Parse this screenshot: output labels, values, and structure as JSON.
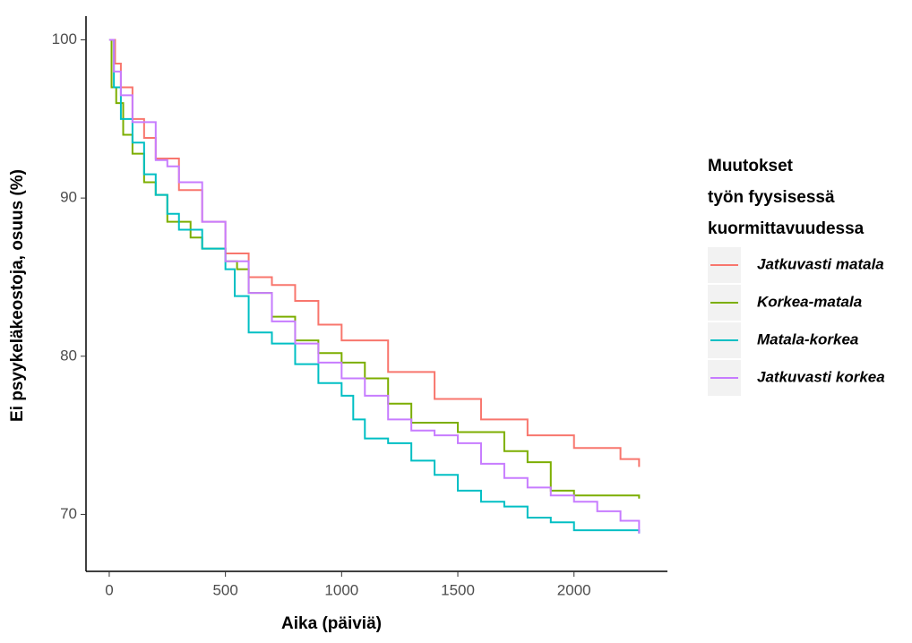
{
  "chart_data": {
    "type": "step",
    "x_label": "Aika (päiviä)",
    "y_label": "Ei psyykeläkeostoja,  osuus (%)",
    "legend_title": [
      "Muutokset",
      "työn fyysisessä",
      "kuormittavuudessa"
    ],
    "legend_position": "right",
    "xlim": [
      -100,
      2402
    ],
    "ylim": [
      66.4,
      101.5
    ],
    "xticks": [
      0,
      500,
      1000,
      1500,
      2000
    ],
    "yticks": [
      70,
      80,
      90,
      100
    ],
    "series": [
      {
        "name": "Jatkuvasti matala",
        "color": "#F8766D",
        "x": [
          0,
          25,
          50,
          100,
          150,
          200,
          300,
          400,
          500,
          600,
          700,
          800,
          900,
          1000,
          1200,
          1400,
          1600,
          1800,
          2000,
          2200,
          2280
        ],
        "values": [
          100,
          98.5,
          97,
          95,
          93.8,
          92.5,
          90.5,
          88.5,
          86.5,
          85,
          84.5,
          83.5,
          82,
          81,
          79,
          77.3,
          76,
          75,
          74.2,
          73.5,
          73
        ]
      },
      {
        "name": "Korkea-matala",
        "color": "#7CAE00",
        "x": [
          0,
          10,
          30,
          60,
          100,
          150,
          200,
          250,
          350,
          400,
          500,
          550,
          600,
          700,
          800,
          900,
          1000,
          1100,
          1200,
          1300,
          1500,
          1700,
          1800,
          1900,
          2000,
          2280
        ],
        "values": [
          100,
          97,
          96,
          94,
          92.8,
          91,
          90.2,
          88.5,
          87.5,
          86.8,
          86,
          85.5,
          84,
          82.5,
          81,
          80.2,
          79.6,
          78.6,
          77,
          75.8,
          75.2,
          74,
          73.3,
          71.5,
          71.2,
          71
        ]
      },
      {
        "name": "Matala-korkea",
        "color": "#00BFC4",
        "x": [
          0,
          20,
          50,
          100,
          150,
          200,
          250,
          300,
          400,
          500,
          540,
          600,
          700,
          800,
          900,
          1000,
          1050,
          1100,
          1200,
          1300,
          1400,
          1500,
          1600,
          1700,
          1800,
          1900,
          2000,
          2280
        ],
        "values": [
          100,
          97,
          95,
          93.5,
          91.5,
          90.2,
          89,
          88,
          86.8,
          85.5,
          83.8,
          81.5,
          80.8,
          79.5,
          78.3,
          77.5,
          76,
          74.8,
          74.5,
          73.4,
          72.5,
          71.5,
          70.8,
          70.5,
          69.8,
          69.5,
          69,
          68.8
        ]
      },
      {
        "name": "Jatkuvasti korkea",
        "color": "#C77CFF",
        "x": [
          0,
          20,
          50,
          100,
          200,
          250,
          300,
          400,
          500,
          600,
          700,
          800,
          900,
          1000,
          1100,
          1200,
          1300,
          1400,
          1500,
          1600,
          1700,
          1800,
          1900,
          2000,
          2100,
          2200,
          2280
        ],
        "values": [
          100,
          98,
          96.5,
          94.8,
          92.4,
          92,
          91,
          88.5,
          86,
          84,
          82.2,
          80.8,
          79.6,
          78.6,
          77.5,
          76,
          75.3,
          75,
          74.5,
          73.2,
          72.3,
          71.7,
          71.2,
          70.8,
          70.2,
          69.6,
          68.8
        ]
      }
    ]
  }
}
